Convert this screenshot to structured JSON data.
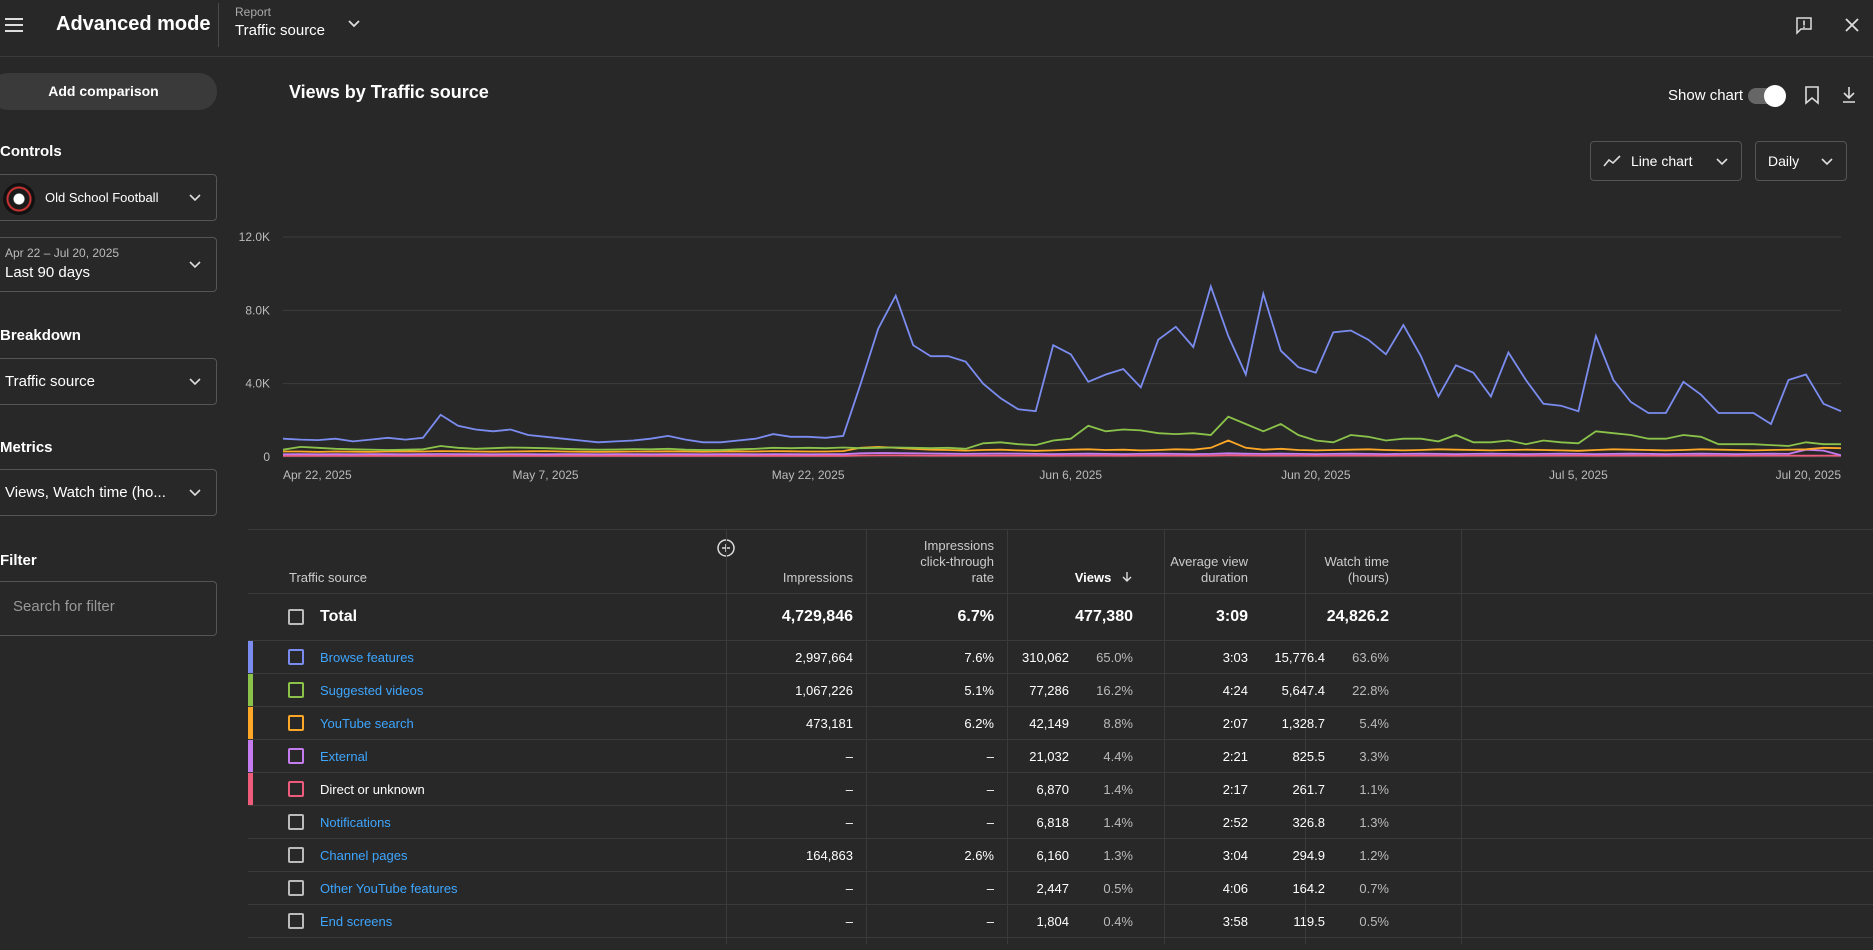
{
  "header": {
    "title": "Advanced mode",
    "report_label": "Report",
    "report_value": "Traffic source"
  },
  "sidebar": {
    "add_comparison": "Add comparison",
    "controls_label": "Controls",
    "channel_name": "Old School Football",
    "date_range": "Apr 22 – Jul 20, 2025",
    "date_preset": "Last 90 days",
    "breakdown_label": "Breakdown",
    "breakdown_value": "Traffic source",
    "metrics_label": "Metrics",
    "metrics_value": "Views, Watch time (ho...",
    "filter_label": "Filter",
    "filter_placeholder": "Search for filter"
  },
  "main": {
    "title": "Views by Traffic source",
    "show_chart": "Show chart",
    "chart_type": "Line chart",
    "granularity": "Daily"
  },
  "chart_data": {
    "type": "line",
    "y_ticks": [
      "12.0K",
      "8.0K",
      "4.0K",
      "0"
    ],
    "ylim": [
      0,
      12000
    ],
    "x_ticks": [
      "Apr 22, 2025",
      "May 7, 2025",
      "May 22, 2025",
      "Jun 6, 2025",
      "Jun 20, 2025",
      "Jul 5, 2025",
      "Jul 20, 2025"
    ],
    "x_start": "2025-04-22",
    "series": [
      {
        "color": "#7b8cf0",
        "values": [
          1000,
          950,
          920,
          1000,
          850,
          950,
          1050,
          950,
          1050,
          2300,
          1700,
          1500,
          1400,
          1500,
          1200,
          1100,
          1000,
          900,
          800,
          850,
          900,
          1000,
          1150,
          950,
          800,
          800,
          900,
          1000,
          1250,
          1100,
          1100,
          1050,
          1150,
          4000,
          7000,
          8800,
          6100,
          5500,
          5500,
          5200,
          4000,
          3200,
          2600,
          2500,
          6100,
          5600,
          4100,
          4500,
          4800,
          3800,
          6400,
          7100,
          6000,
          9300,
          6600,
          4500,
          8900,
          5800,
          4900,
          4600,
          6800,
          6900,
          6400,
          5600,
          7200,
          5500,
          3300,
          5000,
          4600,
          3300,
          5700,
          4200,
          2900,
          2800,
          2500,
          6600,
          4200,
          3000,
          2400,
          2400,
          4100,
          3400,
          2400,
          2400,
          2400,
          1800,
          4200,
          4500,
          2900,
          2500
        ]
      },
      {
        "color": "#8bc34a",
        "values": [
          400,
          550,
          500,
          450,
          420,
          400,
          380,
          400,
          420,
          600,
          500,
          450,
          480,
          520,
          500,
          480,
          450,
          420,
          400,
          410,
          430,
          420,
          450,
          400,
          380,
          380,
          420,
          450,
          500,
          480,
          500,
          480,
          520,
          480,
          500,
          520,
          500,
          480,
          500,
          450,
          750,
          800,
          700,
          650,
          900,
          1000,
          1700,
          1400,
          1500,
          1450,
          1300,
          1250,
          1300,
          1200,
          2200,
          1800,
          1400,
          1800,
          1200,
          900,
          800,
          1200,
          1100,
          900,
          1000,
          1000,
          850,
          1200,
          800,
          800,
          900,
          700,
          900,
          800,
          750,
          1400,
          1300,
          1200,
          1000,
          1000,
          1200,
          1100,
          700,
          700,
          700,
          650,
          600,
          800,
          700,
          700
        ]
      },
      {
        "color": "#ffa726",
        "values": [
          300,
          300,
          280,
          300,
          290,
          280,
          300,
          310,
          300,
          320,
          310,
          300,
          290,
          300,
          310,
          320,
          300,
          290,
          280,
          290,
          300,
          300,
          310,
          300,
          290,
          300,
          310,
          300,
          320,
          310,
          300,
          300,
          320,
          500,
          550,
          500,
          450,
          400,
          380,
          350,
          380,
          400,
          360,
          340,
          360,
          400,
          420,
          380,
          400,
          360,
          380,
          420,
          400,
          500,
          900,
          500,
          400,
          450,
          380,
          360,
          380,
          400,
          420,
          380,
          360,
          380,
          420,
          400,
          380,
          360,
          380,
          400,
          380,
          360,
          340,
          380,
          420,
          400,
          380,
          360,
          380,
          420,
          400,
          380,
          360,
          380,
          400,
          420,
          500,
          480
        ]
      },
      {
        "color": "#c57cf0",
        "values": [
          150,
          160,
          150,
          155,
          150,
          160,
          155,
          150,
          160,
          165,
          160,
          155,
          150,
          160,
          155,
          150,
          160,
          155,
          150,
          160,
          155,
          150,
          160,
          155,
          150,
          160,
          155,
          150,
          160,
          155,
          150,
          160,
          155,
          200,
          220,
          210,
          200,
          190,
          180,
          170,
          180,
          190,
          180,
          170,
          160,
          170,
          180,
          170,
          160,
          170,
          180,
          170,
          160,
          170,
          200,
          180,
          170,
          180,
          170,
          160,
          170,
          180,
          170,
          160,
          170,
          180,
          170,
          160,
          170,
          180,
          170,
          160,
          170,
          180,
          170,
          160,
          170,
          180,
          170,
          160,
          170,
          180,
          170,
          160,
          170,
          180,
          170,
          400,
          350,
          100
        ]
      },
      {
        "color": "#ef5b7a",
        "values": [
          60,
          62,
          61,
          60,
          63,
          62,
          60,
          61,
          62,
          60,
          63,
          61,
          60,
          62,
          61,
          60,
          63,
          62,
          60,
          61,
          62,
          60,
          63,
          61,
          60,
          62,
          61,
          60,
          63,
          62,
          60,
          61,
          62,
          80,
          90,
          85,
          80,
          78,
          76,
          74,
          76,
          78,
          76,
          74,
          72,
          74,
          76,
          74,
          72,
          74,
          76,
          74,
          72,
          74,
          90,
          80,
          76,
          78,
          74,
          72,
          74,
          76,
          74,
          72,
          74,
          76,
          74,
          72,
          74,
          76,
          74,
          72,
          74,
          76,
          74,
          72,
          74,
          76,
          74,
          72,
          74,
          76,
          74,
          72,
          74,
          76,
          74,
          72,
          74,
          72
        ]
      }
    ]
  },
  "table": {
    "headers": {
      "source": "Traffic source",
      "impressions": "Impressions",
      "ctr_1": "Impressions",
      "ctr_2": "click-through",
      "ctr_3": "rate",
      "views": "Views",
      "avd_1": "Average view",
      "avd_2": "duration",
      "wt_1": "Watch time",
      "wt_2": "(hours)"
    },
    "total": {
      "label": "Total",
      "impressions": "4,729,846",
      "ctr": "6.7%",
      "views": "477,380",
      "avd": "3:09",
      "wt": "24,826.2"
    },
    "rows": [
      {
        "source": "Browse features",
        "color": "#7b8cf0",
        "link": true,
        "impressions": "2,997,664",
        "ctr": "7.6%",
        "views": "310,062",
        "views_pct": "65.0%",
        "avd": "3:03",
        "wt": "15,776.4",
        "wt_pct": "63.6%"
      },
      {
        "source": "Suggested videos",
        "color": "#8bc34a",
        "link": true,
        "impressions": "1,067,226",
        "ctr": "5.1%",
        "views": "77,286",
        "views_pct": "16.2%",
        "avd": "4:24",
        "wt": "5,647.4",
        "wt_pct": "22.8%"
      },
      {
        "source": "YouTube search",
        "color": "#ffa726",
        "link": true,
        "impressions": "473,181",
        "ctr": "6.2%",
        "views": "42,149",
        "views_pct": "8.8%",
        "avd": "2:07",
        "wt": "1,328.7",
        "wt_pct": "5.4%"
      },
      {
        "source": "External",
        "color": "#c57cf0",
        "link": true,
        "impressions": "–",
        "ctr": "–",
        "views": "21,032",
        "views_pct": "4.4%",
        "avd": "2:21",
        "wt": "825.5",
        "wt_pct": "3.3%"
      },
      {
        "source": "Direct or unknown",
        "color": "#ef5b7a",
        "link": false,
        "impressions": "–",
        "ctr": "–",
        "views": "6,870",
        "views_pct": "1.4%",
        "avd": "2:17",
        "wt": "261.7",
        "wt_pct": "1.1%"
      },
      {
        "source": "Notifications",
        "color": "",
        "link": true,
        "impressions": "–",
        "ctr": "–",
        "views": "6,818",
        "views_pct": "1.4%",
        "avd": "2:52",
        "wt": "326.8",
        "wt_pct": "1.3%"
      },
      {
        "source": "Channel pages",
        "color": "",
        "link": true,
        "impressions": "164,863",
        "ctr": "2.6%",
        "views": "6,160",
        "views_pct": "1.3%",
        "avd": "3:04",
        "wt": "294.9",
        "wt_pct": "1.2%"
      },
      {
        "source": "Other YouTube features",
        "color": "",
        "link": true,
        "impressions": "–",
        "ctr": "–",
        "views": "2,447",
        "views_pct": "0.5%",
        "avd": "4:06",
        "wt": "164.2",
        "wt_pct": "0.7%"
      },
      {
        "source": "End screens",
        "color": "",
        "link": true,
        "impressions": "–",
        "ctr": "–",
        "views": "1,804",
        "views_pct": "0.4%",
        "avd": "3:58",
        "wt": "119.5",
        "wt_pct": "0.5%"
      }
    ]
  }
}
